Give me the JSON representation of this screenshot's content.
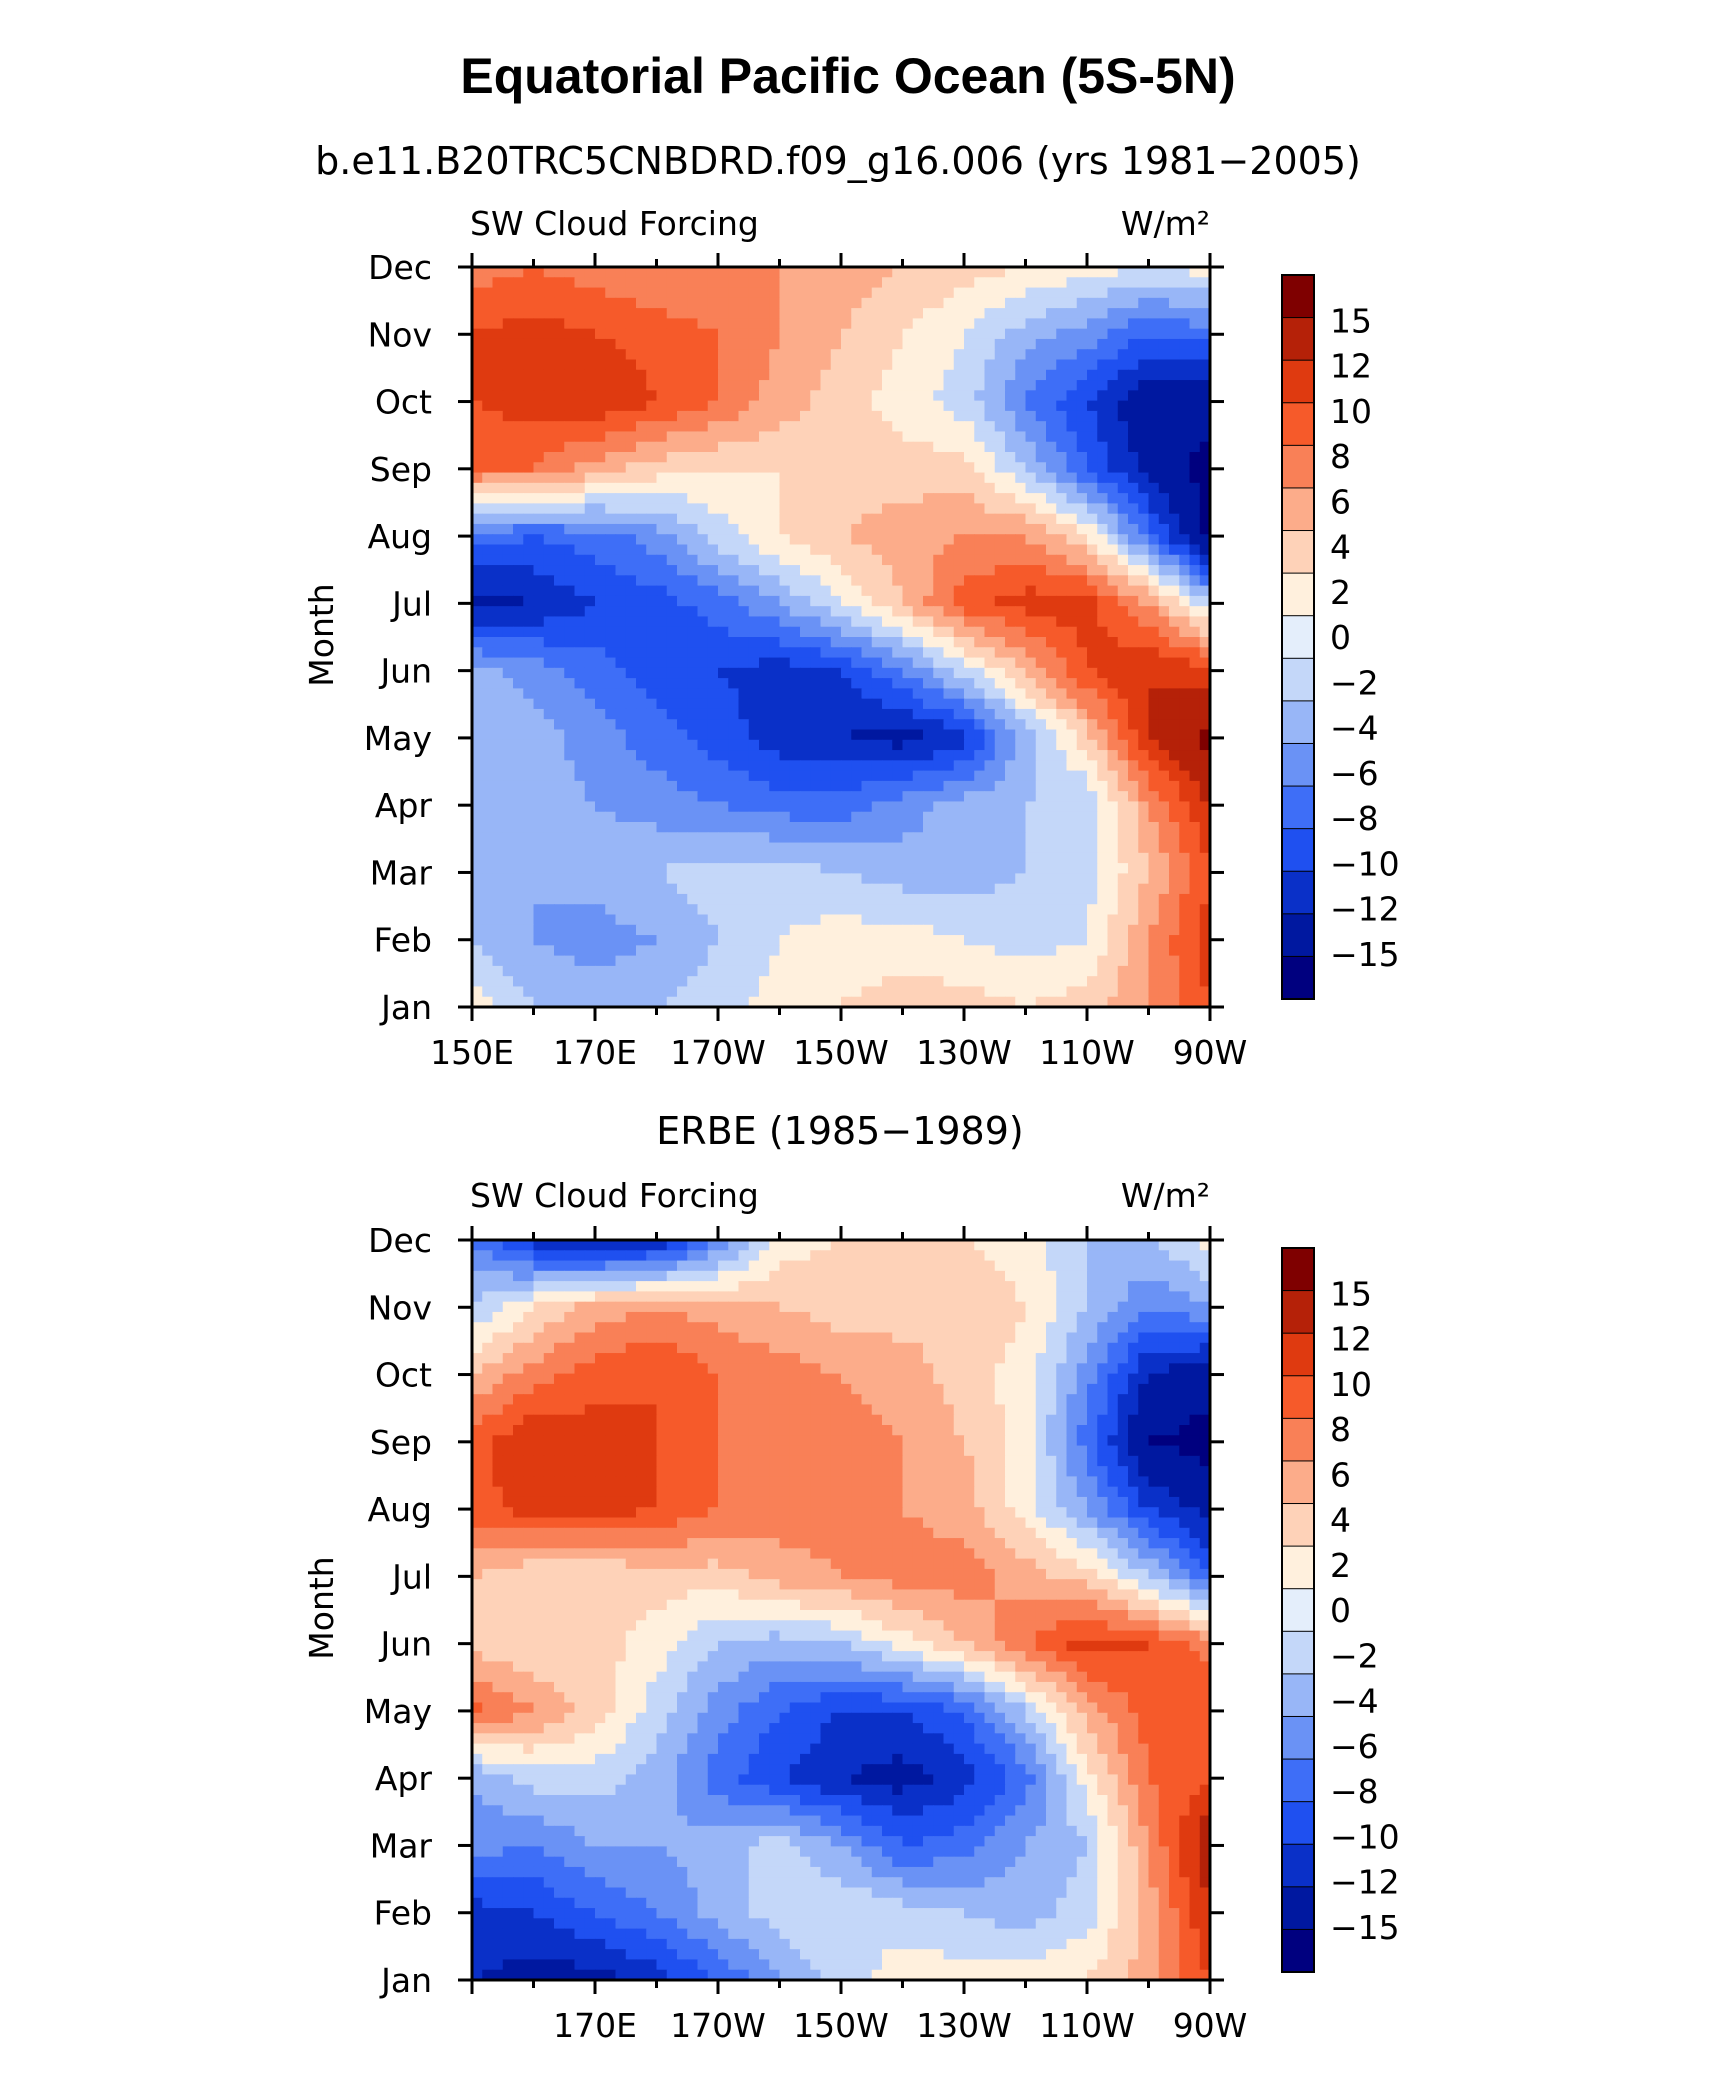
{
  "title": "Equatorial Pacific Ocean (5S-5N)",
  "colors": [
    "#00007f",
    "#0018a0",
    "#0a30c8",
    "#1f50f0",
    "#3e6ef7",
    "#6a92f5",
    "#98b6f7",
    "#c4d7f9",
    "#e4eefb",
    "#fff0dd",
    "#fed2b8",
    "#fcac8a",
    "#f98057",
    "#f65a2a",
    "#df3a10",
    "#b52108",
    "#7f0000"
  ],
  "chart_data": [
    {
      "type": "heatmap",
      "subtitle": "b.e11.B20TRC5CNBDRD.f09_g16.006 (yrs 1981−2005)",
      "variable": "SW Cloud Forcing",
      "units": "W/m²",
      "ylabel": "Month",
      "x_ticks": [
        "150E",
        "170E",
        "170W",
        "150W",
        "130W",
        "110W",
        "90W"
      ],
      "y_ticks": [
        "Jan",
        "Feb",
        "Mar",
        "Apr",
        "May",
        "Jun",
        "Jul",
        "Aug",
        "Sep",
        "Oct",
        "Nov",
        "Dec"
      ],
      "colorbar_labels": [
        "15",
        "12",
        "10",
        "8",
        "6",
        "4",
        "2",
        "0",
        "−2",
        "−4",
        "−6",
        "−8",
        "−10",
        "−12",
        "−15"
      ],
      "x_range": [
        150,
        270
      ],
      "x_values": [
        150,
        160,
        170,
        180,
        190,
        200,
        210,
        220,
        230,
        240,
        250,
        260,
        270
      ],
      "y_values": [
        "Jan",
        "Feb",
        "Mar",
        "Apr",
        "May",
        "Jun",
        "Jul",
        "Aug",
        "Sep",
        "Oct",
        "Nov",
        "Dec"
      ],
      "z": [
        [
          1,
          -2,
          -3,
          -2,
          -1,
          1,
          2,
          3,
          3,
          2,
          3,
          6,
          10
        ],
        [
          -2,
          -4,
          -5,
          -4,
          -2,
          0,
          1,
          1,
          0,
          -1,
          0,
          6,
          11
        ],
        [
          -3,
          -4,
          -3,
          -2,
          -1,
          -1,
          -2,
          -3,
          -3,
          -2,
          -1,
          4,
          10
        ],
        [
          -3,
          -3,
          -4,
          -5,
          -6,
          -7,
          -7,
          -5,
          -3,
          -2,
          -2,
          6,
          12
        ],
        [
          -3,
          -3,
          -5,
          -7,
          -9,
          -11,
          -12,
          -13,
          -11,
          -3,
          3,
          12,
          16
        ],
        [
          -3,
          -5,
          -7,
          -9,
          -10,
          -11,
          -10,
          -6,
          -1,
          4,
          10,
          12,
          11
        ],
        [
          -13,
          -12,
          -10,
          -9,
          -7,
          -4,
          0,
          4,
          9,
          11,
          11,
          6,
          -2
        ],
        [
          -7,
          -8,
          -7,
          -5,
          -1,
          2,
          4,
          5,
          6,
          6,
          2,
          -7,
          -16
        ],
        [
          8,
          8,
          5,
          3,
          2,
          2,
          3,
          3,
          3,
          -2,
          -8,
          -13,
          -16
        ],
        [
          10,
          11,
          12,
          10,
          8,
          5,
          3,
          1,
          -1,
          -6,
          -10,
          -14,
          -14
        ],
        [
          10,
          11,
          10,
          9,
          8,
          6,
          4,
          2,
          0,
          -3,
          -5,
          -8,
          -7
        ],
        [
          7,
          8,
          7,
          6,
          6,
          6,
          5,
          4,
          3,
          2,
          1,
          0,
          1
        ]
      ]
    },
    {
      "type": "heatmap",
      "subtitle": "ERBE (1985−1989)",
      "variable": "SW Cloud Forcing",
      "units": "W/m²",
      "ylabel": "Month",
      "x_ticks": [
        "170E",
        "170W",
        "150W",
        "130W",
        "110W",
        "90W"
      ],
      "y_ticks": [
        "Jan",
        "Feb",
        "Mar",
        "Apr",
        "May",
        "Jun",
        "Jul",
        "Aug",
        "Sep",
        "Oct",
        "Nov",
        "Dec"
      ],
      "colorbar_labels": [
        "15",
        "12",
        "10",
        "8",
        "6",
        "4",
        "2",
        "0",
        "−2",
        "−4",
        "−6",
        "−8",
        "−10",
        "−12",
        "−15"
      ],
      "x_range": [
        150,
        270
      ],
      "x_values": [
        150,
        160,
        170,
        180,
        190,
        200,
        210,
        220,
        230,
        240,
        250,
        260,
        270
      ],
      "y_values": [
        "Jan",
        "Feb",
        "Mar",
        "Apr",
        "May",
        "Jun",
        "Jul",
        "Aug",
        "Sep",
        "Oct",
        "Nov",
        "Dec"
      ],
      "z": [
        [
          -12,
          -13,
          -13,
          -11,
          -8,
          -4,
          -1,
          1,
          1,
          1,
          2,
          5,
          10
        ],
        [
          -11,
          -10,
          -8,
          -6,
          -3,
          -1,
          0,
          -1,
          -2,
          -3,
          -1,
          5,
          12
        ],
        [
          -5,
          -6,
          -4,
          -4,
          -3,
          -1,
          -4,
          -8,
          -7,
          -4,
          -2,
          6,
          14
        ],
        [
          -4,
          -1,
          -1,
          -3,
          -7,
          -10,
          -12,
          -13,
          -11,
          -7,
          1,
          8,
          10
        ],
        [
          9,
          6,
          3,
          -1,
          -5,
          -8,
          -10,
          -10,
          -8,
          -2,
          5,
          9,
          10
        ],
        [
          3,
          2,
          3,
          1,
          -2,
          -3,
          -2,
          1,
          4,
          8,
          11,
          10,
          7
        ],
        [
          4,
          2,
          2,
          3,
          3,
          5,
          6,
          7,
          7,
          5,
          3,
          -2,
          -8
        ],
        [
          9,
          11,
          11,
          10,
          8,
          7,
          7,
          6,
          5,
          1,
          -4,
          -10,
          -13
        ],
        [
          9,
          12,
          11,
          10,
          8,
          8,
          7,
          6,
          4,
          1,
          -7,
          -15,
          -16
        ],
        [
          4,
          7,
          9,
          10,
          8,
          7,
          6,
          5,
          3,
          1,
          -5,
          -12,
          -14
        ],
        [
          -2,
          2,
          5,
          6,
          5,
          4,
          3,
          3,
          4,
          2,
          -2,
          -6,
          -4
        ],
        [
          -6,
          -11,
          -13,
          -12,
          -6,
          1,
          2,
          2,
          2,
          1,
          -2,
          -2,
          1
        ]
      ]
    }
  ]
}
